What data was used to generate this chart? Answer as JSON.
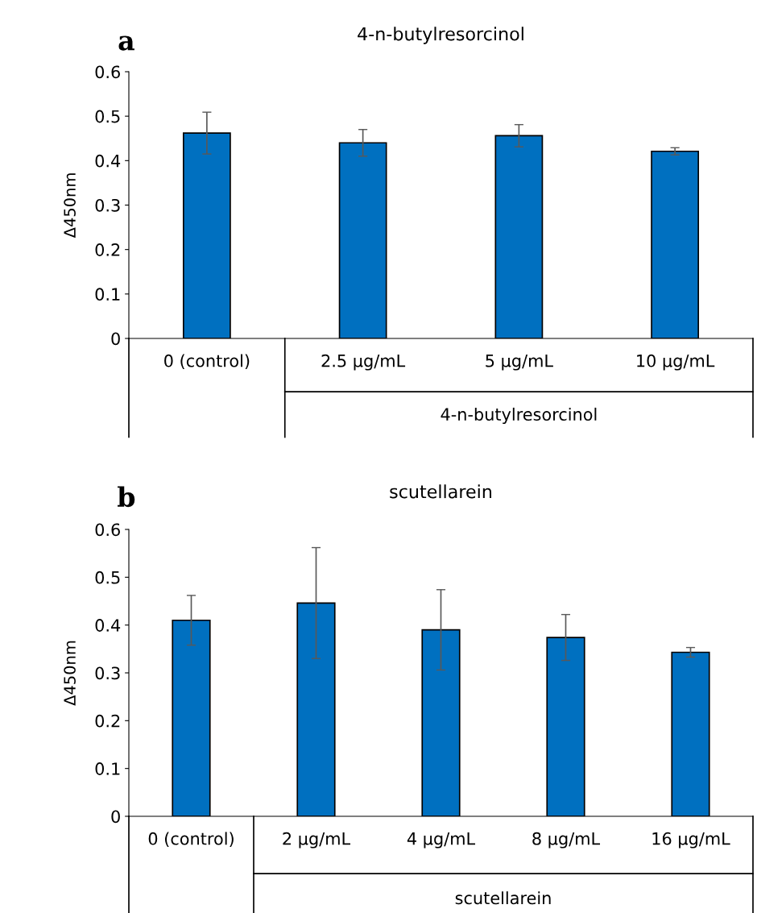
{
  "chart_data": [
    {
      "type": "bar",
      "title": "4-n-butylresorcinol",
      "ylabel": "Δ450nm",
      "categories": [
        "0 (control)",
        "2.5 µg/mL",
        "5 µg/mL",
        "10 µg/mL"
      ],
      "series": [
        {
          "color": "#0070c0",
          "values": [
            0.462,
            0.44,
            0.456,
            0.421
          ],
          "errors": [
            0.047,
            0.03,
            0.025,
            0.008
          ]
        }
      ],
      "ylim": [
        0,
        0.6
      ],
      "yticks": [
        {
          "value": 0,
          "label": "0"
        },
        0.1,
        0.2,
        0.3,
        0.4,
        0.5,
        0.6
      ],
      "grid": false,
      "legend": false,
      "annotations": [
        "a",
        "4-n-butylresorcinol"
      ]
    },
    {
      "type": "bar",
      "title": "scutellarein",
      "ylabel": "Δ450nm",
      "categories": [
        "0 (control)",
        "2 µg/mL",
        "4 µg/mL",
        "8 µg/mL",
        "16 µg/mL"
      ],
      "series": [
        {
          "color": "#0070c0",
          "values": [
            0.41,
            0.446,
            0.39,
            0.374,
            0.343
          ],
          "errors": [
            0.052,
            0.116,
            0.084,
            0.048,
            0.01
          ]
        }
      ],
      "ylim": [
        0,
        0.6
      ],
      "yticks": [
        {
          "value": 0,
          "label": "0"
        },
        0.1,
        0.2,
        0.3,
        0.4,
        0.5,
        0.6
      ],
      "grid": false,
      "legend": false,
      "annotations": [
        "b",
        "scutellarein"
      ]
    }
  ]
}
